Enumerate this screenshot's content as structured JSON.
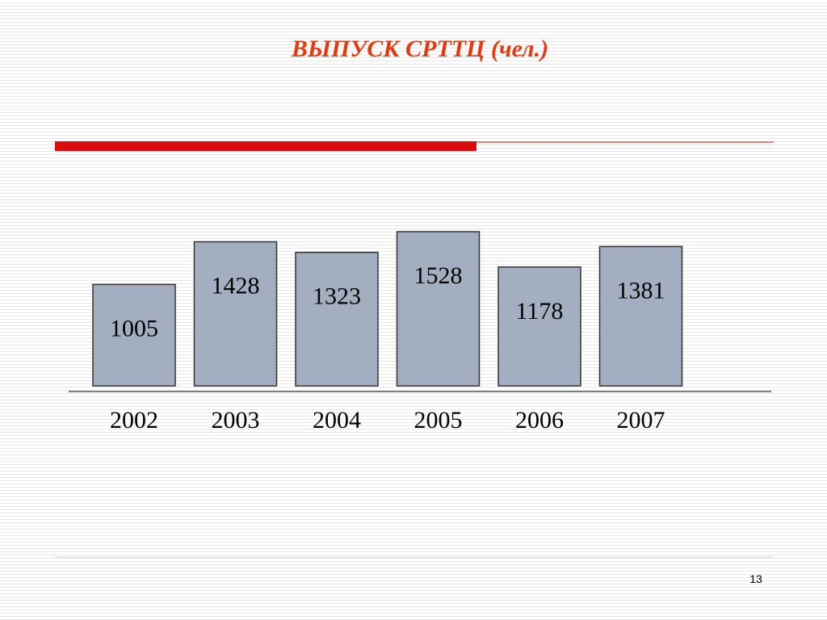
{
  "chart_data": {
    "type": "bar",
    "title": "ВЫПУСК  СРТТЦ (чел.)",
    "categories": [
      "2002",
      "2003",
      "2004",
      "2005",
      "2006",
      "2007"
    ],
    "values": [
      1005,
      1428,
      1323,
      1528,
      1178,
      1381
    ],
    "color": "#a3afc0"
  },
  "page_number": "13"
}
